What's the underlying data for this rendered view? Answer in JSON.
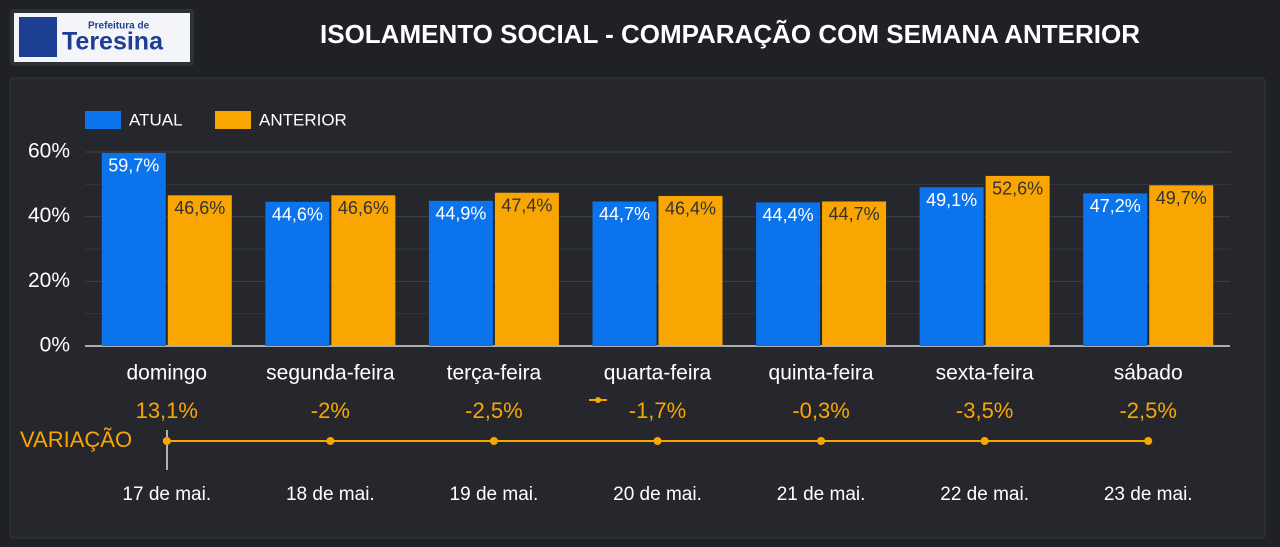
{
  "header": {
    "logo_small": "Prefeitura de",
    "logo_big": "Teresina",
    "title": "ISOLAMENTO SOCIAL - COMPARAÇÃO COM SEMANA ANTERIOR"
  },
  "chart_data": [
    {
      "type": "bar",
      "categories": [
        "domingo",
        "segunda-feira",
        "terça-feira",
        "quarta-feira",
        "quinta-feira",
        "sexta-feira",
        "sábado"
      ],
      "series": [
        {
          "name": "ATUAL",
          "color": "#0b74ec",
          "values": [
            59.7,
            44.6,
            44.9,
            44.7,
            44.4,
            49.1,
            47.2
          ],
          "value_labels": [
            "59,7%",
            "44,6%",
            "44,9%",
            "44,7%",
            "44,4%",
            "49,1%",
            "47,2%"
          ]
        },
        {
          "name": "ANTERIOR",
          "color": "#f9a602",
          "values": [
            46.6,
            46.6,
            47.4,
            46.4,
            44.7,
            52.6,
            49.7
          ],
          "value_labels": [
            "46,6%",
            "46,6%",
            "47,4%",
            "46,4%",
            "44,7%",
            "52,6%",
            "49,7%"
          ]
        }
      ],
      "ylim": [
        0,
        60
      ],
      "yticks": [
        {
          "value": 0,
          "label": "0%"
        },
        {
          "value": 20,
          "label": "20%"
        },
        {
          "value": 40,
          "label": "40%"
        },
        {
          "value": 60,
          "label": "60%"
        }
      ],
      "minor_yticks": [
        10,
        30,
        50
      ],
      "grid": true,
      "legend": "top-left"
    },
    {
      "type": "line",
      "label": "VARIAÇÃO",
      "categories": [
        "17 de mai.",
        "18 de mai.",
        "19 de mai.",
        "20 de mai.",
        "21 de mai.",
        "22 de mai.",
        "23 de mai."
      ],
      "color": "#f9a602",
      "values": [
        13.1,
        -2,
        -2.5,
        -1.7,
        -0.3,
        -3.5,
        -2.5
      ],
      "value_labels": [
        "13,1%",
        "-2%",
        "-2,5%",
        "-1,7%",
        "-0,3%",
        "-3,5%",
        "-2,5%"
      ]
    }
  ]
}
